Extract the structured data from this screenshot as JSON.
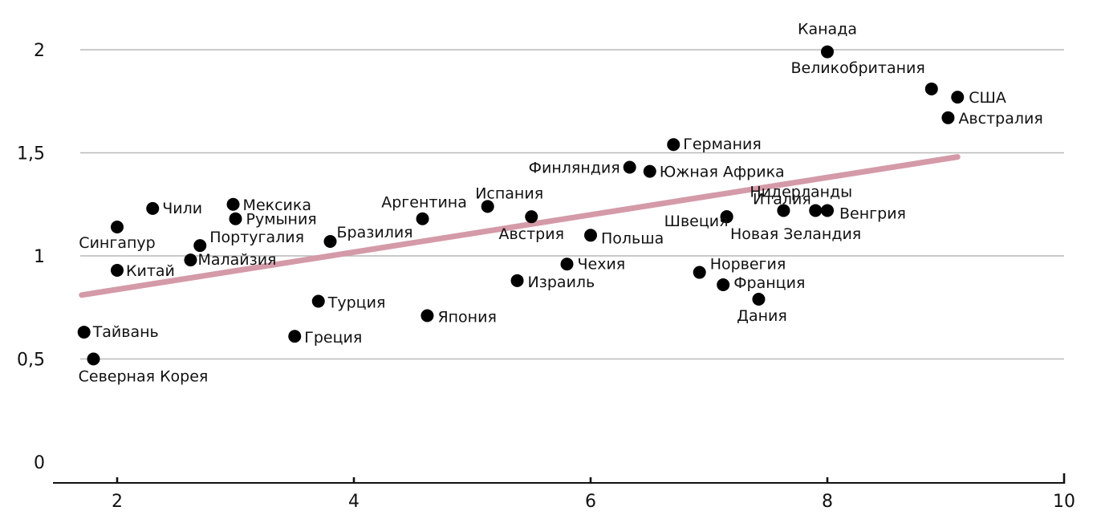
{
  "chart_data": {
    "type": "scatter",
    "title": "",
    "xlabel": "",
    "ylabel": "",
    "xlim": [
      1.5,
      10
    ],
    "ylim": [
      0,
      2.2
    ],
    "xticks": [
      2,
      4,
      6,
      8,
      10
    ],
    "yticks": [
      0,
      0.5,
      1,
      1.5,
      2
    ],
    "ytick_labels": [
      "0",
      "0,5",
      "1",
      "1,5",
      "2"
    ],
    "grid": "horizontal",
    "colors": {
      "points": "#000000",
      "trend": "#d49aa8",
      "grid": "#b9b9b9"
    },
    "trend_line": {
      "x": [
        1.7,
        9.1
      ],
      "y": [
        0.81,
        1.48
      ]
    },
    "points": [
      {
        "label": "Канада",
        "x": 8.0,
        "y": 1.99
      },
      {
        "label": "Великобритания",
        "x": 8.88,
        "y": 1.81
      },
      {
        "label": "США",
        "x": 9.1,
        "y": 1.77
      },
      {
        "label": "Австралия",
        "x": 9.02,
        "y": 1.67
      },
      {
        "label": "Германия",
        "x": 6.7,
        "y": 1.54
      },
      {
        "label": "Финляндия",
        "x": 6.33,
        "y": 1.43
      },
      {
        "label": "Южная Африка",
        "x": 6.5,
        "y": 1.41
      },
      {
        "label": "Нидерланды",
        "x": 7.9,
        "y": 1.22
      },
      {
        "label": "Венгрия",
        "x": 8.0,
        "y": 1.22
      },
      {
        "label": "Италия",
        "x": 7.63,
        "y": 1.22
      },
      {
        "label": "Швеция",
        "x": 7.15,
        "y": 1.19
      },
      {
        "label": "Новая Зеландия",
        "x": 7.15,
        "y": 1.19
      },
      {
        "label": "Испания",
        "x": 5.13,
        "y": 1.24
      },
      {
        "label": "Аргентина",
        "x": 4.58,
        "y": 1.18
      },
      {
        "label": "Австрия",
        "x": 5.5,
        "y": 1.19
      },
      {
        "label": "Польша",
        "x": 6.0,
        "y": 1.1
      },
      {
        "label": "Чехия",
        "x": 5.8,
        "y": 0.96
      },
      {
        "label": "Израиль",
        "x": 5.38,
        "y": 0.88
      },
      {
        "label": "Япония",
        "x": 4.62,
        "y": 0.71
      },
      {
        "label": "Норвегия",
        "x": 6.92,
        "y": 0.92
      },
      {
        "label": "Франция",
        "x": 7.12,
        "y": 0.86
      },
      {
        "label": "Дания",
        "x": 7.42,
        "y": 0.79
      },
      {
        "label": "Чили",
        "x": 2.3,
        "y": 1.23
      },
      {
        "label": "Сингапур",
        "x": 2.0,
        "y": 1.14
      },
      {
        "label": "Мексика",
        "x": 2.98,
        "y": 1.25
      },
      {
        "label": "Румыния",
        "x": 3.0,
        "y": 1.18
      },
      {
        "label": "Португалия",
        "x": 2.7,
        "y": 1.05
      },
      {
        "label": "Бразилия",
        "x": 3.8,
        "y": 1.07
      },
      {
        "label": "Малайзия",
        "x": 2.62,
        "y": 0.98
      },
      {
        "label": "Китай",
        "x": 2.0,
        "y": 0.93
      },
      {
        "label": "Турция",
        "x": 3.7,
        "y": 0.78
      },
      {
        "label": "Греция",
        "x": 3.5,
        "y": 0.61
      },
      {
        "label": "Тайвань",
        "x": 1.72,
        "y": 0.63
      },
      {
        "label": "Северная Корея",
        "x": 1.8,
        "y": 0.5
      }
    ]
  }
}
